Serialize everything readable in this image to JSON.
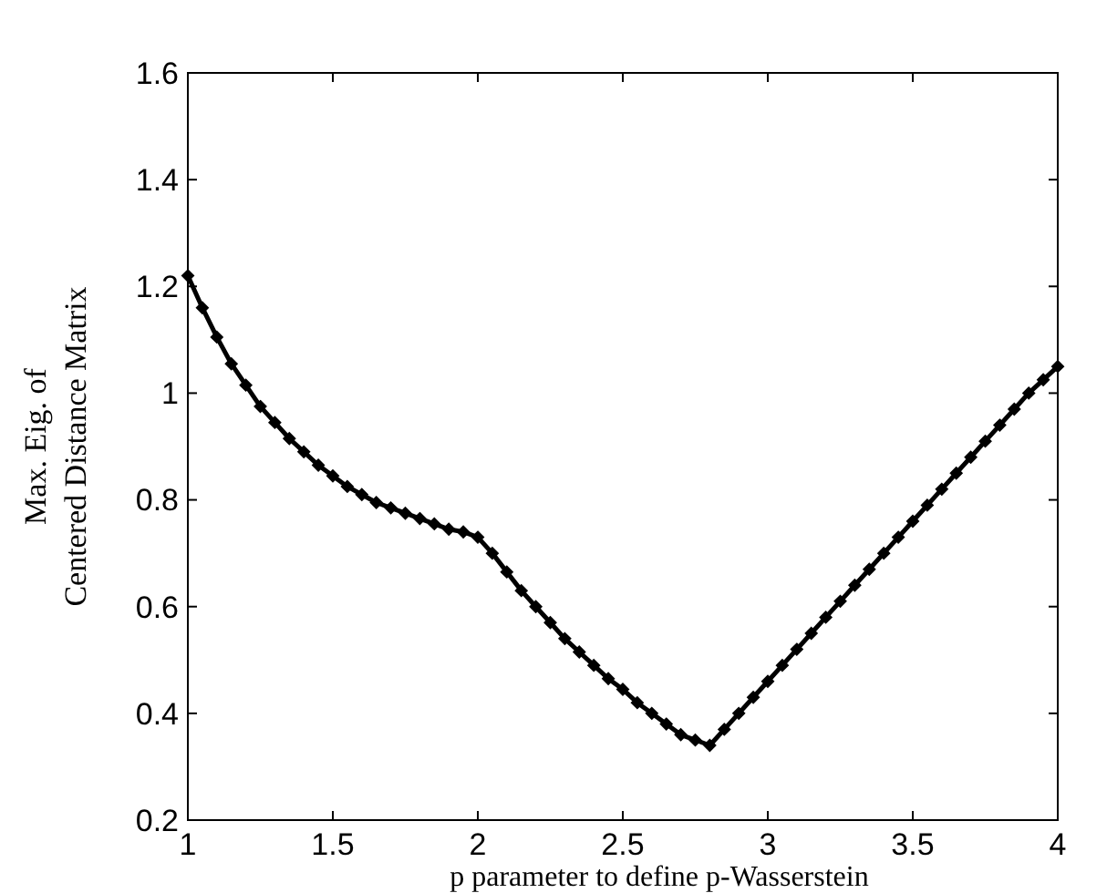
{
  "chart_data": {
    "type": "line",
    "xlabel": "p parameter to define p-Wasserstein",
    "ylabel": "Max. Eig. of\nCentered Distance Matrix",
    "x": [
      1,
      1.05,
      1.1,
      1.15,
      1.2,
      1.25,
      1.3,
      1.35,
      1.4,
      1.45,
      1.5,
      1.55,
      1.6,
      1.65,
      1.7,
      1.75,
      1.8,
      1.85,
      1.9,
      1.95,
      2,
      2.05,
      2.1,
      2.15,
      2.2,
      2.25,
      2.3,
      2.35,
      2.4,
      2.45,
      2.5,
      2.55,
      2.6,
      2.65,
      2.7,
      2.75,
      2.8,
      2.85,
      2.9,
      2.95,
      3,
      3.05,
      3.1,
      3.15,
      3.2,
      3.25,
      3.3,
      3.35,
      3.4,
      3.45,
      3.5,
      3.55,
      3.6,
      3.65,
      3.7,
      3.75,
      3.8,
      3.85,
      3.9,
      3.95,
      4
    ],
    "series": [
      {
        "color": "#000000",
        "values": [
          1.22,
          1.16,
          1.105,
          1.055,
          1.015,
          0.975,
          0.945,
          0.915,
          0.89,
          0.865,
          0.845,
          0.825,
          0.81,
          0.795,
          0.785,
          0.775,
          0.765,
          0.755,
          0.745,
          0.74,
          0.73,
          0.7,
          0.665,
          0.63,
          0.6,
          0.57,
          0.54,
          0.515,
          0.49,
          0.465,
          0.445,
          0.42,
          0.4,
          0.38,
          0.36,
          0.35,
          0.34,
          0.37,
          0.4,
          0.43,
          0.46,
          0.49,
          0.52,
          0.55,
          0.58,
          0.61,
          0.64,
          0.67,
          0.7,
          0.73,
          0.76,
          0.79,
          0.82,
          0.85,
          0.88,
          0.91,
          0.94,
          0.97,
          1.0,
          1.025,
          1.05
        ]
      }
    ],
    "xlim": [
      1,
      4
    ],
    "xticks": [
      1,
      1.5,
      2,
      2.5,
      3,
      3.5,
      4
    ],
    "ylim": [
      0.2,
      1.6
    ],
    "yticks": [
      0.2,
      0.4,
      0.6,
      0.8,
      1,
      1.2,
      1.4,
      1.6
    ],
    "grid": false,
    "marker": "diamond",
    "line_style": "solid"
  }
}
